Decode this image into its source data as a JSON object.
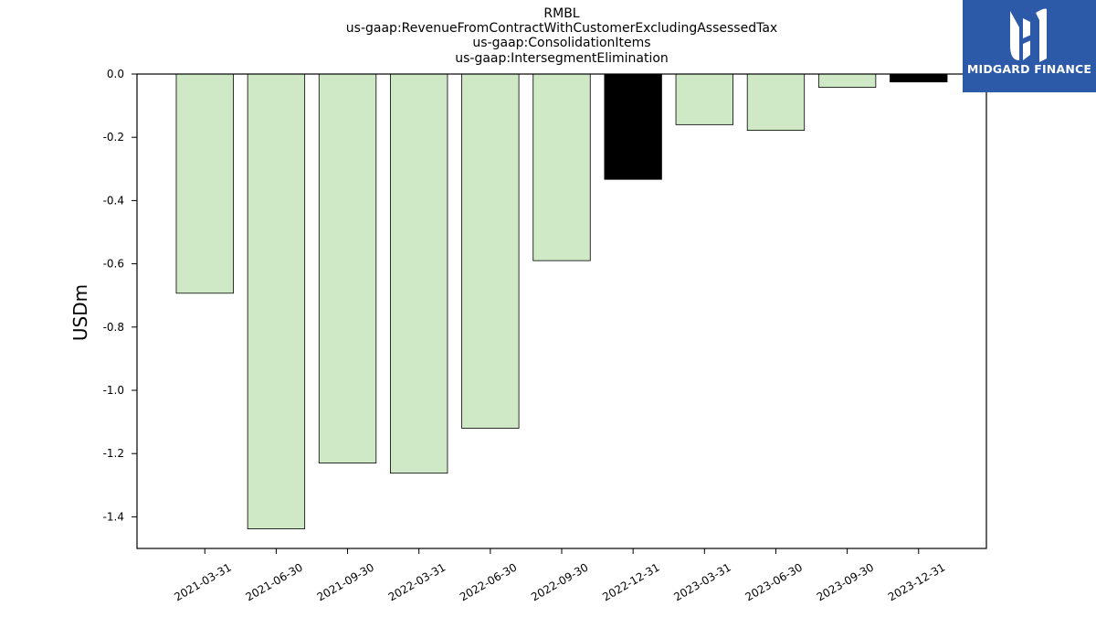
{
  "chart_data": {
    "type": "bar",
    "title_lines": [
      "RMBL",
      "us-gaap:RevenueFromContractWithCustomerExcludingAssessedTax",
      "us-gaap:ConsolidationItems",
      "us-gaap:IntersegmentElimination"
    ],
    "xlabel": "",
    "ylabel": "USDm",
    "ylim": [
      -1.5,
      0.0
    ],
    "yticks": [
      0.0,
      -0.2,
      -0.4,
      -0.6,
      -0.8,
      -1.0,
      -1.2,
      -1.4
    ],
    "ytick_labels": [
      "0.0",
      "-0.2",
      "-0.4",
      "-0.6",
      "-0.8",
      "-1.0",
      "-1.2",
      "-1.4"
    ],
    "categories": [
      "2021-03-31",
      "2021-06-30",
      "2021-09-30",
      "2022-03-31",
      "2022-06-30",
      "2022-09-30",
      "2022-12-31",
      "2023-03-31",
      "2023-06-30",
      "2023-09-30",
      "2023-12-31"
    ],
    "values": [
      -0.693,
      -1.438,
      -1.23,
      -1.262,
      -1.12,
      -0.59,
      -0.333,
      -0.16,
      -0.178,
      -0.042,
      -0.025
    ],
    "bar_colors": [
      "#cfe9c7",
      "#cfe9c7",
      "#cfe9c7",
      "#cfe9c7",
      "#cfe9c7",
      "#cfe9c7",
      "#000000",
      "#cfe9c7",
      "#cfe9c7",
      "#cfe9c7",
      "#000000"
    ],
    "grid": false,
    "legend": "none"
  },
  "logo": {
    "text": "MIDGARD FINANCE",
    "background": "#2d5aa8",
    "foreground": "#ffffff",
    "icon": "midgard-m-logo"
  }
}
